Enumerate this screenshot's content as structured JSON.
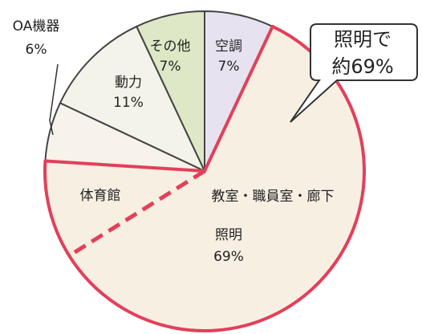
{
  "chart_data": {
    "type": "pie",
    "categories": [
      "空調",
      "照明",
      "OA機器",
      "動力",
      "その他"
    ],
    "values": [
      7,
      69,
      6,
      11,
      7
    ],
    "value_labels": [
      "7%",
      "69%",
      "6%",
      "11%",
      "7%"
    ],
    "colors": [
      "#e6e2f0",
      "#f8efe3",
      "#f7f3ea",
      "#f3f3ea",
      "#dfe8c6"
    ],
    "edgecolors": [
      "#444444",
      "#e2405a",
      "#444444",
      "#444444",
      "#444444"
    ],
    "startangle": 90,
    "counterclock": false,
    "sublabels": [
      "教室・職員室・廊下",
      "体育館"
    ],
    "callout": [
      "照明で",
      "約69%"
    ]
  }
}
